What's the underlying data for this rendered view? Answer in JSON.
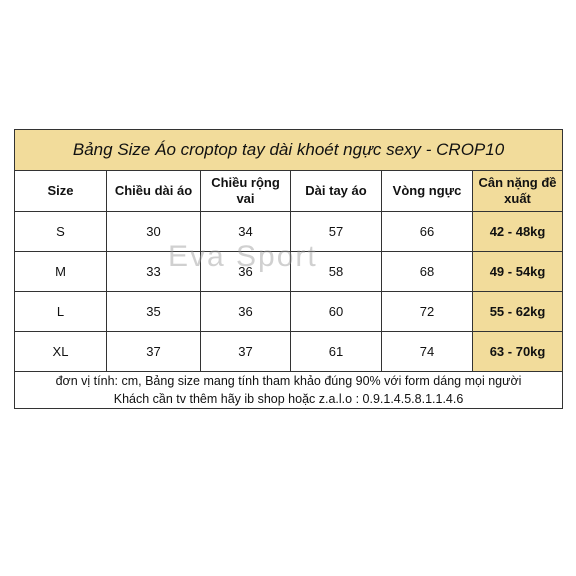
{
  "table": {
    "title": "Bảng Size Áo croptop tay dài khoét ngực sexy - CROP10",
    "header": [
      "Size",
      "Chiều dài áo",
      "Chiều rộng vai",
      "Dài tay áo",
      "Vòng ngực",
      "Cân nặng đề xuất"
    ],
    "rows": [
      [
        "S",
        "30",
        "34",
        "57",
        "66",
        "42 - 48kg"
      ],
      [
        "M",
        "33",
        "36",
        "58",
        "68",
        "49 - 54kg"
      ],
      [
        "L",
        "35",
        "36",
        "60",
        "72",
        "55 - 62kg"
      ],
      [
        "XL",
        "37",
        "37",
        "61",
        "74",
        "63 - 70kg"
      ]
    ],
    "notes": [
      "đơn vị tính: cm, Bảng size mang tính tham khảo đúng 90% với form dáng mọi người",
      "Khách cần tv thêm hãy ib shop hoặc z.a.l.o : 0.9.1.4.5.8.1.1.4.6"
    ]
  },
  "watermark": "Eva Sport"
}
